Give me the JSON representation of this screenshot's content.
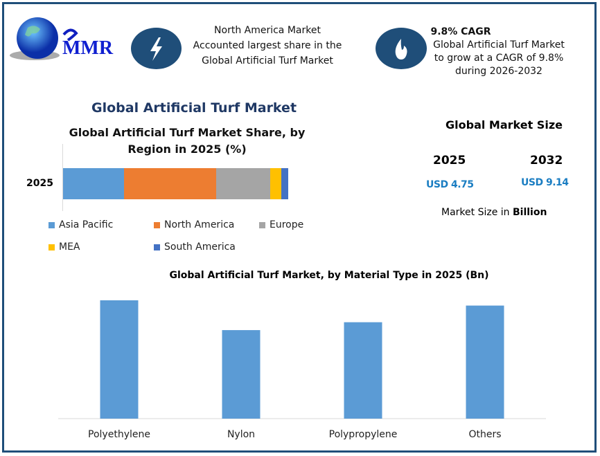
{
  "logo": {
    "text": "MMR"
  },
  "highlight1": {
    "icon": "lightning-icon",
    "lines": [
      "North America Market",
      "Accounted largest share in the",
      "Global Artificial Turf Market"
    ]
  },
  "highlight2": {
    "icon": "flame-icon",
    "title": "9.8% CAGR",
    "lines": [
      "Global Artificial Turf Market",
      "to grow at a CAGR of 9.8%",
      "during 2026-2032"
    ]
  },
  "main_title": "Global Artificial Turf Market",
  "market_size": {
    "title": "Global Market Size",
    "year1": "2025",
    "value1": "USD 4.75",
    "year2": "2032",
    "value2": "USD 9.14",
    "note_prefix": "Market Size in ",
    "note_bold": "Billion"
  },
  "colors": {
    "frame": "#1f4e79",
    "accent": "#1a7dc2"
  },
  "chart_data": [
    {
      "type": "bar",
      "orientation": "horizontal",
      "stacked": true,
      "title_lines": [
        "Global Artificial Turf Market Share, by",
        "Region in 2025 (%)"
      ],
      "categories": [
        "2025"
      ],
      "series": [
        {
          "name": "Asia Pacific",
          "values": [
            27
          ],
          "color": "#5b9bd5"
        },
        {
          "name": "North America",
          "values": [
            41
          ],
          "color": "#ed7d31"
        },
        {
          "name": "Europe",
          "values": [
            24
          ],
          "color": "#a5a5a5"
        },
        {
          "name": "MEA",
          "values": [
            5
          ],
          "color": "#ffc000"
        },
        {
          "name": "South America",
          "values": [
            3
          ],
          "color": "#4472c4"
        }
      ],
      "xlim": [
        0,
        100
      ],
      "legend": "bottom",
      "grid": false
    },
    {
      "type": "bar",
      "title": "Global Artificial Turf Market, by Material Type in 2025 (Bn)",
      "categories": [
        "Polyethylene",
        "Nylon",
        "Polypropylene",
        "Others"
      ],
      "values": [
        1.35,
        1.01,
        1.1,
        1.29
      ],
      "ylim": [
        0,
        1.5
      ],
      "color": "#5b9bd5",
      "grid": false
    }
  ]
}
